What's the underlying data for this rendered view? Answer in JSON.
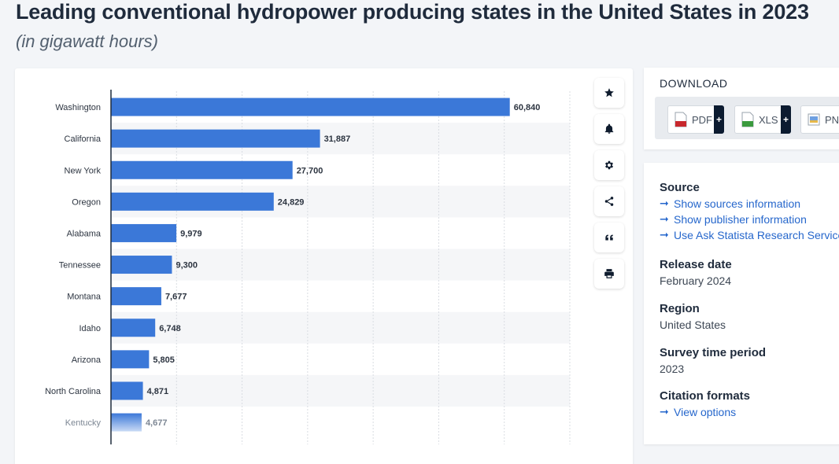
{
  "header": {
    "title": "Leading conventional hydropower producing states in the United States in 2023",
    "subtitle": "(in gigawatt hours)"
  },
  "chart_data": {
    "type": "bar",
    "orientation": "horizontal",
    "categories": [
      "Washington",
      "California",
      "New York",
      "Oregon",
      "Alabama",
      "Tennessee",
      "Montana",
      "Idaho",
      "Arizona",
      "North Carolina",
      "Kentucky"
    ],
    "values": [
      60840,
      31887,
      27700,
      24829,
      9979,
      9300,
      7677,
      6748,
      5805,
      4871,
      4677
    ],
    "value_labels": [
      "60,840",
      "31,887",
      "27,700",
      "24,829",
      "9,979",
      "9,300",
      "7,677",
      "6,748",
      "5,805",
      "4,871",
      "4,677"
    ],
    "xlim": [
      0,
      70000
    ],
    "grid": true,
    "bar_color": "#3b78d8"
  },
  "tools": {
    "items": [
      {
        "name": "star-icon"
      },
      {
        "name": "bell-icon"
      },
      {
        "name": "gear-icon"
      },
      {
        "name": "share-icon"
      },
      {
        "name": "quote-icon"
      },
      {
        "name": "print-icon"
      }
    ]
  },
  "download": {
    "title": "DOWNLOAD",
    "buttons": [
      {
        "label": "PDF",
        "plus": "+"
      },
      {
        "label": "XLS",
        "plus": "+"
      },
      {
        "label": "PNG",
        "plus": "+"
      }
    ]
  },
  "info": {
    "source": {
      "heading": "Source",
      "links": [
        "Show sources information",
        "Show publisher information",
        "Use Ask Statista Research Service"
      ]
    },
    "release": {
      "heading": "Release date",
      "value": "February 2024"
    },
    "region": {
      "heading": "Region",
      "value": "United States"
    },
    "survey": {
      "heading": "Survey time period",
      "value": "2023"
    },
    "citation": {
      "heading": "Citation formats",
      "link": "View options"
    }
  },
  "colors": {
    "link": "#2667cc",
    "accent_dark": "#0c1b30"
  }
}
